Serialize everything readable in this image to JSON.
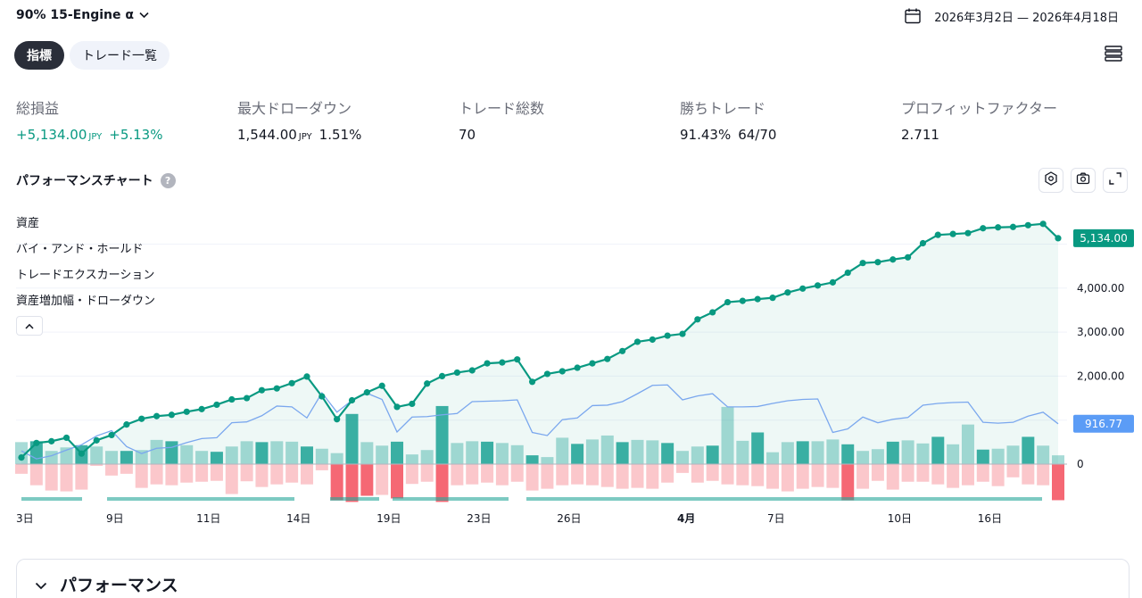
{
  "header": {
    "strategy_name": "90% 15-Engine α",
    "date_range": "2026年3月2日 — 2026年4月18日"
  },
  "tabs": [
    {
      "label": "指標",
      "active": true
    },
    {
      "label": "トレード一覧",
      "active": false
    }
  ],
  "metrics": {
    "net_profit": {
      "label": "総損益",
      "value": "+5,134.00",
      "unit": "JPY",
      "pct": "+5.13%"
    },
    "max_drawdown": {
      "label": "最大ドローダウン",
      "value": "1,544.00",
      "unit": "JPY",
      "pct": "1.51%"
    },
    "total_trades": {
      "label": "トレード総数",
      "value": "70"
    },
    "win_trades": {
      "label": "勝ちトレード",
      "value": "91.43%",
      "ratio": "64/70"
    },
    "profit_factor": {
      "label": "プロフィットファクター",
      "value": "2.711"
    }
  },
  "chart_section": {
    "title": "パフォーマンスチャート",
    "help_icon": "?",
    "legend": [
      "資産",
      "バイ・アンド・ホールド",
      "トレードエクスカーション",
      "資産増加幅・ドローダウン"
    ],
    "icons": [
      "settings-icon",
      "camera-icon",
      "expand-icon",
      "chevron-up-icon"
    ]
  },
  "chart_data": {
    "type": "line",
    "ylim": [
      0,
      5400
    ],
    "y_ticks": [
      "0",
      "2,000.00",
      "3,000.00",
      "4,000.00"
    ],
    "x_tick_labels": [
      "3日",
      "9日",
      "11日",
      "14日",
      "19日",
      "23日",
      "26日",
      "4月",
      "7日",
      "10日",
      "16日"
    ],
    "x_tick_index": [
      0,
      6,
      12,
      18,
      24,
      30,
      36,
      44,
      50,
      58,
      64
    ],
    "last_equity_label": "5,134.00",
    "last_buyhold_label": "916.77",
    "colors": {
      "equity": "#089981",
      "buyhold": "#7aa7ee",
      "runup": "#26a69a",
      "drawdown": "#f23645"
    },
    "series": [
      {
        "name": "資産",
        "values": [
          150,
          480,
          520,
          600,
          240,
          540,
          660,
          900,
          1030,
          1090,
          1120,
          1190,
          1250,
          1350,
          1470,
          1500,
          1680,
          1720,
          1840,
          1990,
          1540,
          1020,
          1450,
          1630,
          1780,
          1300,
          1370,
          1830,
          2000,
          2080,
          2130,
          2290,
          2310,
          2380,
          1870,
          2050,
          2110,
          2190,
          2290,
          2390,
          2570,
          2780,
          2830,
          2920,
          2960,
          3290,
          3450,
          3680,
          3710,
          3750,
          3780,
          3900,
          3990,
          4060,
          4130,
          4350,
          4570,
          4590,
          4650,
          4700,
          5020,
          5210,
          5230,
          5250,
          5360,
          5380,
          5390,
          5430,
          5460,
          5134
        ]
      },
      {
        "name": "バイ・アンド・ホールド",
        "values": [
          300,
          120,
          190,
          320,
          440,
          640,
          760,
          400,
          240,
          360,
          380,
          490,
          580,
          600,
          940,
          960,
          1100,
          1320,
          1300,
          1050,
          1620,
          1180,
          1450,
          1610,
          1470,
          730,
          1070,
          1080,
          1120,
          1150,
          1420,
          1430,
          1440,
          1460,
          720,
          650,
          1010,
          1050,
          1330,
          1340,
          1420,
          1600,
          1790,
          1800,
          1460,
          1550,
          1600,
          1300,
          1300,
          1310,
          1380,
          1440,
          1470,
          1480,
          720,
          800,
          1070,
          940,
          1020,
          1060,
          1340,
          1380,
          1400,
          1410,
          950,
          930,
          950,
          1090,
          1180,
          916.77
        ]
      },
      {
        "name": "トレードエクスカーション",
        "runup": [
          500,
          520,
          300,
          380,
          430,
          400,
          300,
          300,
          320,
          550,
          520,
          430,
          300,
          280,
          400,
          520,
          500,
          520,
          510,
          400,
          350,
          250,
          1140,
          500,
          420,
          510,
          220,
          320,
          1320,
          480,
          520,
          510,
          480,
          430,
          200,
          160,
          600,
          460,
          560,
          650,
          500,
          550,
          540,
          480,
          300,
          400,
          420,
          1300,
          530,
          720,
          270,
          500,
          520,
          520,
          560,
          450,
          300,
          340,
          510,
          540,
          470,
          620,
          450,
          900,
          330,
          350,
          420,
          620,
          420,
          200
        ],
        "drawdown": [
          -220,
          -480,
          -600,
          -620,
          -580,
          -40,
          -260,
          -220,
          -540,
          -460,
          -480,
          -420,
          -400,
          -380,
          -680,
          -390,
          -520,
          -460,
          -420,
          -460,
          -140,
          -820,
          -860,
          -720,
          -700,
          -780,
          -450,
          -400,
          -860,
          -480,
          -460,
          -420,
          -480,
          -400,
          -600,
          -560,
          -480,
          -460,
          -480,
          -520,
          -560,
          -540,
          -560,
          -420,
          -200,
          -420,
          -380,
          -460,
          -480,
          -500,
          -560,
          -620,
          -560,
          -520,
          -540,
          -820,
          -560,
          -380,
          -580,
          -400,
          -400,
          -460,
          -540,
          -480,
          -400,
          -500,
          -300,
          -460,
          -480,
          -820
        ]
      }
    ]
  },
  "performance_section": {
    "title": "パフォーマンス"
  }
}
